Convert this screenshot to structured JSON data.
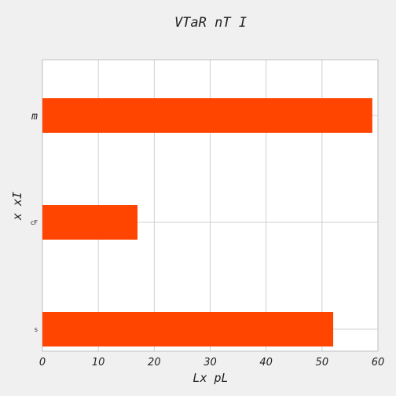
{
  "chart_data": {
    "type": "bar",
    "orientation": "horizontal",
    "title": "VTaR nT I",
    "xlabel": "Lx pL",
    "ylabel": "x xI",
    "categories": [
      "s",
      "cF",
      "m"
    ],
    "values": [
      52,
      17,
      59
    ],
    "xlim": [
      0,
      60
    ],
    "xticks": [
      0,
      10,
      20,
      30,
      40,
      50,
      60
    ],
    "grid": true,
    "legend": "none",
    "bar_color": "#ff4500"
  }
}
